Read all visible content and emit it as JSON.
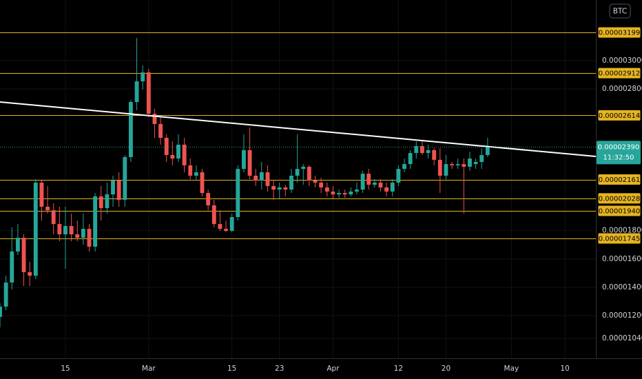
{
  "chart_data": {
    "type": "candlestick",
    "currency": "BTC",
    "x": [
      3,
      4,
      5,
      6,
      7,
      8,
      9,
      10,
      11,
      12,
      13,
      14,
      15,
      16,
      17,
      18,
      19,
      20,
      21,
      22,
      23,
      24,
      25,
      26,
      27,
      28,
      29,
      30,
      31,
      32,
      33,
      34,
      35,
      36,
      37,
      38,
      39,
      40,
      41,
      42,
      43,
      44,
      45,
      46,
      47,
      48,
      49,
      50,
      51,
      52,
      53,
      54,
      55,
      56,
      57,
      58,
      59,
      60,
      61,
      62,
      63,
      64,
      65,
      66,
      67,
      68,
      69,
      70,
      71,
      72,
      73,
      74,
      75,
      76,
      77,
      78,
      79,
      80,
      81,
      82,
      83,
      84,
      85
    ],
    "open": [
      1.191e-05,
      1.264e-05,
      1.434e-05,
      1.653e-05,
      1.75e-05,
      1.507e-05,
      1.482e-05,
      2.139e-05,
      1.969e-05,
      1.944e-05,
      1.847e-05,
      1.774e-05,
      1.833e-05,
      1.774e-05,
      1.75e-05,
      1.813e-05,
      1.687e-05,
      2.042e-05,
      1.959e-05,
      2.056e-05,
      2.154e-05,
      2.017e-05,
      2.319e-05,
      2.708e-05,
      2.854e-05,
      2.917e-05,
      2.625e-05,
      2.553e-05,
      2.455e-05,
      2.334e-05,
      2.309e-05,
      2.407e-05,
      2.261e-05,
      2.188e-05,
      2.212e-05,
      2.066e-05,
      1.979e-05,
      1.847e-05,
      1.813e-05,
      1.799e-05,
      1.896e-05,
      2.236e-05,
      2.368e-05,
      2.188e-05,
      2.154e-05,
      2.212e-05,
      2.115e-05,
      2.09e-05,
      2.105e-05,
      2.09e-05,
      2.188e-05,
      2.236e-05,
      2.251e-05,
      2.154e-05,
      2.139e-05,
      2.105e-05,
      2.076e-05,
      2.056e-05,
      2.066e-05,
      2.056e-05,
      2.076e-05,
      2.09e-05,
      2.202e-05,
      2.124e-05,
      2.139e-05,
      2.105e-05,
      2.076e-05,
      2.139e-05,
      2.236e-05,
      2.27e-05,
      2.348e-05,
      2.397e-05,
      2.348e-05,
      2.368e-05,
      2.3e-05,
      2.188e-05,
      2.27e-05,
      2.261e-05,
      2.27e-05,
      2.251e-05,
      2.27e-05,
      2.285e-05,
      2.334e-05
    ],
    "high": [
      1.288e-05,
      1.482e-05,
      1.823e-05,
      1.847e-05,
      1.774e-05,
      1.58e-05,
      2.163e-05,
      2.154e-05,
      2.115e-05,
      1.993e-05,
      1.969e-05,
      1.969e-05,
      1.92e-05,
      1.871e-05,
      1.92e-05,
      1.847e-05,
      2.066e-05,
      2.115e-05,
      2.139e-05,
      2.188e-05,
      2.212e-05,
      2.334e-05,
      2.723e-05,
      3.16e-05,
      2.966e-05,
      2.942e-05,
      2.66e-05,
      2.601e-05,
      2.48e-05,
      2.431e-05,
      2.48e-05,
      2.455e-05,
      2.309e-05,
      2.261e-05,
      2.236e-05,
      2.09e-05,
      2.017e-05,
      1.944e-05,
      1.871e-05,
      1.92e-05,
      2.261e-05,
      2.48e-05,
      2.528e-05,
      2.236e-05,
      2.285e-05,
      2.261e-05,
      2.154e-05,
      2.139e-05,
      2.124e-05,
      2.236e-05,
      2.48e-05,
      2.27e-05,
      2.261e-05,
      2.188e-05,
      2.173e-05,
      2.139e-05,
      2.115e-05,
      2.09e-05,
      2.09e-05,
      2.105e-05,
      2.139e-05,
      2.222e-05,
      2.236e-05,
      2.163e-05,
      2.163e-05,
      2.139e-05,
      2.163e-05,
      2.261e-05,
      2.309e-05,
      2.368e-05,
      2.431e-05,
      2.431e-05,
      2.407e-05,
      2.382e-05,
      2.382e-05,
      2.334e-05,
      2.285e-05,
      2.309e-05,
      2.309e-05,
      2.358e-05,
      2.309e-05,
      2.382e-05,
      2.455e-05
    ],
    "low": [
      1.118e-05,
      1.239e-05,
      1.385e-05,
      1.628e-05,
      1.409e-05,
      1.409e-05,
      1.458e-05,
      1.871e-05,
      1.92e-05,
      1.774e-05,
      1.726e-05,
      1.531e-05,
      1.726e-05,
      1.726e-05,
      1.701e-05,
      1.653e-05,
      1.653e-05,
      1.871e-05,
      1.92e-05,
      1.969e-05,
      1.969e-05,
      1.969e-05,
      2.285e-05,
      2.65e-05,
      2.796e-05,
      2.601e-05,
      2.455e-05,
      2.407e-05,
      2.285e-05,
      2.261e-05,
      2.285e-05,
      2.212e-05,
      2.163e-05,
      2.154e-05,
      2.042e-05,
      1.944e-05,
      1.823e-05,
      1.799e-05,
      1.789e-05,
      1.789e-05,
      1.871e-05,
      2.212e-05,
      2.163e-05,
      2.115e-05,
      2.09e-05,
      2.076e-05,
      2.017e-05,
      2.027e-05,
      2.042e-05,
      2.066e-05,
      2.139e-05,
      2.124e-05,
      2.115e-05,
      2.105e-05,
      2.066e-05,
      2.042e-05,
      2.027e-05,
      2.032e-05,
      2.032e-05,
      2.042e-05,
      2.056e-05,
      2.066e-05,
      2.09e-05,
      2.105e-05,
      2.076e-05,
      2.042e-05,
      2.042e-05,
      2.115e-05,
      2.212e-05,
      2.236e-05,
      2.309e-05,
      2.334e-05,
      2.309e-05,
      2.261e-05,
      2.066e-05,
      2.163e-05,
      2.236e-05,
      2.236e-05,
      1.92e-05,
      2.222e-05,
      2.236e-05,
      2.236e-05,
      2.319e-05
    ],
    "close": [
      1.264e-05,
      1.434e-05,
      1.653e-05,
      1.75e-05,
      1.507e-05,
      1.482e-05,
      2.139e-05,
      1.969e-05,
      1.944e-05,
      1.847e-05,
      1.774e-05,
      1.833e-05,
      1.774e-05,
      1.75e-05,
      1.813e-05,
      1.687e-05,
      2.042e-05,
      1.959e-05,
      2.056e-05,
      2.154e-05,
      2.017e-05,
      2.319e-05,
      2.708e-05,
      2.854e-05,
      2.917e-05,
      2.625e-05,
      2.553e-05,
      2.455e-05,
      2.334e-05,
      2.309e-05,
      2.407e-05,
      2.261e-05,
      2.188e-05,
      2.212e-05,
      2.066e-05,
      1.979e-05,
      1.847e-05,
      1.813e-05,
      1.799e-05,
      1.896e-05,
      2.236e-05,
      2.368e-05,
      2.188e-05,
      2.154e-05,
      2.212e-05,
      2.115e-05,
      2.09e-05,
      2.105e-05,
      2.09e-05,
      2.188e-05,
      2.236e-05,
      2.251e-05,
      2.154e-05,
      2.139e-05,
      2.105e-05,
      2.076e-05,
      2.056e-05,
      2.066e-05,
      2.056e-05,
      2.076e-05,
      2.09e-05,
      2.202e-05,
      2.124e-05,
      2.139e-05,
      2.105e-05,
      2.076e-05,
      2.139e-05,
      2.236e-05,
      2.27e-05,
      2.348e-05,
      2.397e-05,
      2.348e-05,
      2.368e-05,
      2.3e-05,
      2.188e-05,
      2.27e-05,
      2.261e-05,
      2.27e-05,
      2.251e-05,
      2.309e-05,
      2.285e-05,
      2.334e-05,
      2.39e-05
    ],
    "up_color": "#26a69a",
    "down_color": "#ef5350",
    "xlim": [
      3,
      103.2
    ],
    "xticks": [
      {
        "value": 14,
        "label": "15"
      },
      {
        "value": 28,
        "label": "Mar"
      },
      {
        "value": 42,
        "label": "15"
      },
      {
        "value": 50,
        "label": "23"
      },
      {
        "value": 59,
        "label": "Apr"
      },
      {
        "value": 70,
        "label": "12"
      },
      {
        "value": 78,
        "label": "20"
      },
      {
        "value": 89,
        "label": "May"
      },
      {
        "value": 98,
        "label": "10"
      }
    ],
    "ylim": [
      8.99e-06,
      3.428e-05
    ],
    "yticks": [
      {
        "value": 1.04e-05,
        "label": "0.00001040"
      },
      {
        "value": 1.2e-05,
        "label": "0.00001200"
      },
      {
        "value": 1.4e-05,
        "label": "0.00001400"
      },
      {
        "value": 1.6e-05,
        "label": "0.00001600"
      },
      {
        "value": 1.8e-05,
        "label": "0.00001800"
      },
      {
        "value": 2.8e-05,
        "label": "0.00002800"
      },
      {
        "value": 3e-05,
        "label": "0.00003000"
      }
    ],
    "grid": true,
    "level_color": "#e6b422",
    "levels": [
      {
        "value": 3.199e-05,
        "label": "0.00003199"
      },
      {
        "value": 2.912e-05,
        "label": "0.00002912"
      },
      {
        "value": 2.614e-05,
        "label": "0.00002614"
      },
      {
        "value": 2.161e-05,
        "label": "0.00002161"
      },
      {
        "value": 2.028e-05,
        "label": "0.00002028"
      },
      {
        "value": 1.94e-05,
        "label": "0.00001940"
      },
      {
        "value": 1.745e-05,
        "label": "0.00001745"
      }
    ],
    "trendline": {
      "x": [
        3,
        103.2
      ],
      "y": [
        2.708e-05,
        2.324e-05
      ],
      "color": "#ffffff"
    },
    "last_price": {
      "value": 2.39e-05,
      "label": "0.00002390",
      "countdown": "11:32:50"
    }
  }
}
